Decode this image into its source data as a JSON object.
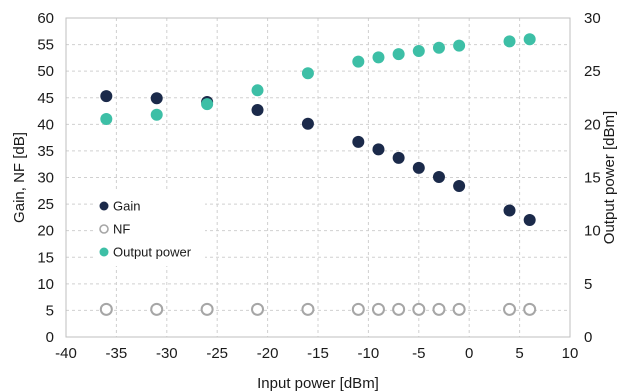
{
  "chart_data": {
    "type": "scatter",
    "xlabel": "Input power [dBm]",
    "ylabel_left": "Gain, NF [dB]",
    "ylabel_right": "Output power [dBm]",
    "xlim": [
      -40,
      10
    ],
    "ylim_left": [
      0,
      60
    ],
    "ylim_right": [
      0,
      30
    ],
    "x_ticks": [
      "-40",
      "-35",
      "-30",
      "-25",
      "-20",
      "-15",
      "-10",
      "-5",
      "0",
      "5",
      "10"
    ],
    "y_left_ticks": [
      "0",
      "5",
      "10",
      "15",
      "20",
      "25",
      "30",
      "35",
      "40",
      "45",
      "50",
      "55",
      "60"
    ],
    "y_right_ticks": [
      "0",
      "5",
      "10",
      "15",
      "20",
      "25",
      "30"
    ],
    "grid": true,
    "legend_position": "lower-left",
    "series": [
      {
        "name": "Gain",
        "axis": "left",
        "marker": "filled-circle",
        "color": "#1b2a4a",
        "x": [
          -36,
          -31,
          -26,
          -21,
          -16,
          -11,
          -9,
          -7,
          -5,
          -3,
          -1,
          4,
          6
        ],
        "y": [
          45.3,
          44.9,
          44.2,
          42.7,
          40.1,
          36.7,
          35.3,
          33.7,
          31.8,
          30.1,
          28.4,
          23.8,
          22.0
        ]
      },
      {
        "name": "NF",
        "axis": "left",
        "marker": "open-circle",
        "color": "#a6a6a6",
        "x": [
          -36,
          -31,
          -26,
          -21,
          -16,
          -11,
          -9,
          -7,
          -5,
          -3,
          -1,
          4,
          6
        ],
        "y": [
          5.2,
          5.2,
          5.2,
          5.2,
          5.2,
          5.2,
          5.2,
          5.2,
          5.2,
          5.2,
          5.2,
          5.2,
          5.2
        ]
      },
      {
        "name": "Output power",
        "axis": "right",
        "marker": "filled-circle",
        "color": "#3dbfa6",
        "x": [
          -36,
          -31,
          -26,
          -21,
          -16,
          -11,
          -9,
          -7,
          -5,
          -3,
          -1,
          4,
          6
        ],
        "y": [
          20.5,
          20.9,
          21.9,
          23.2,
          24.8,
          25.9,
          26.3,
          26.6,
          26.9,
          27.2,
          27.4,
          27.8,
          28.0
        ]
      }
    ]
  }
}
